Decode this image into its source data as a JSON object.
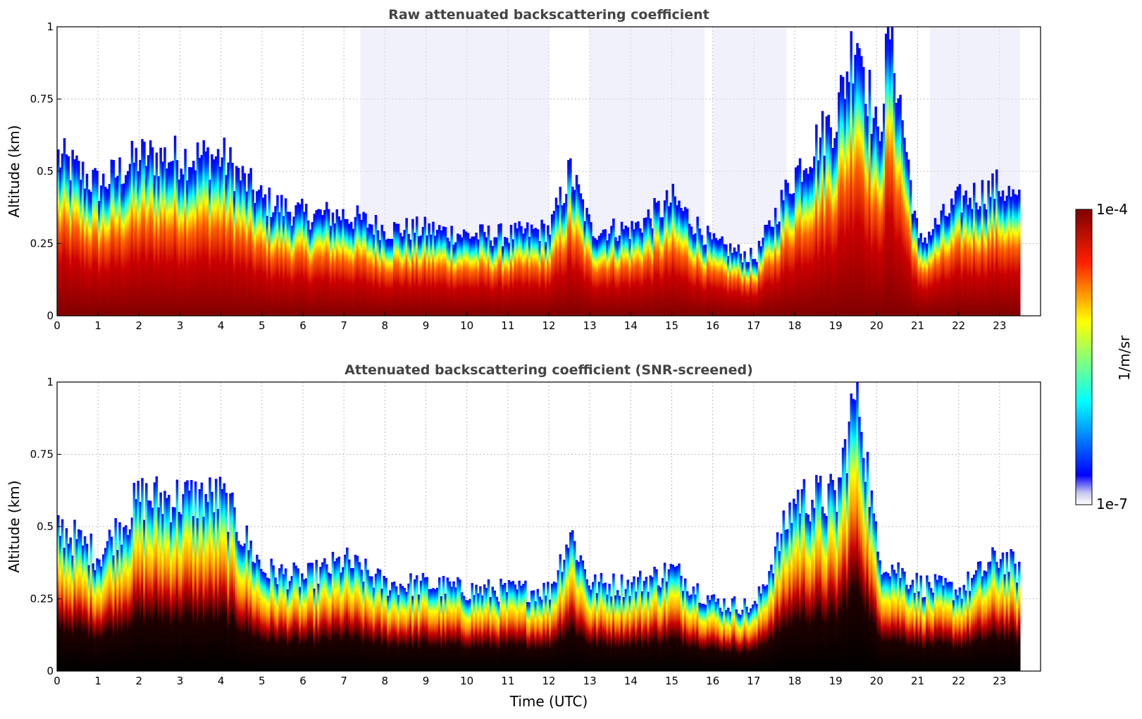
{
  "chart_data": [
    {
      "type": "heatmap",
      "title": "Raw attenuated backscattering coefficient",
      "xlabel": "",
      "ylabel": "Altitude (km)",
      "xlim": [
        0,
        24
      ],
      "ylim": [
        0,
        1
      ],
      "xticks": [
        "0",
        "1",
        "2",
        "3",
        "4",
        "5",
        "6",
        "7",
        "8",
        "9",
        "10",
        "11",
        "12",
        "13",
        "14",
        "15",
        "16",
        "17",
        "18",
        "19",
        "20",
        "21",
        "22",
        "23"
      ],
      "yticks": [
        "0",
        "0.25",
        "0.5",
        "0.75",
        "1"
      ],
      "grid": true,
      "data_end_hour": 23.5,
      "boundary_layer_top_km": [
        {
          "x": 0,
          "y": 0.55
        },
        {
          "x": 1,
          "y": 0.45
        },
        {
          "x": 2,
          "y": 0.55
        },
        {
          "x": 3,
          "y": 0.55
        },
        {
          "x": 4,
          "y": 0.55
        },
        {
          "x": 5,
          "y": 0.4
        },
        {
          "x": 6,
          "y": 0.35
        },
        {
          "x": 7,
          "y": 0.35
        },
        {
          "x": 8,
          "y": 0.3
        },
        {
          "x": 9,
          "y": 0.3
        },
        {
          "x": 10,
          "y": 0.28
        },
        {
          "x": 11,
          "y": 0.28
        },
        {
          "x": 12,
          "y": 0.3
        },
        {
          "x": 12.5,
          "y": 0.5
        },
        {
          "x": 13,
          "y": 0.3
        },
        {
          "x": 14,
          "y": 0.3
        },
        {
          "x": 15,
          "y": 0.4
        },
        {
          "x": 16,
          "y": 0.25
        },
        {
          "x": 17,
          "y": 0.2
        },
        {
          "x": 18,
          "y": 0.5
        },
        {
          "x": 19,
          "y": 0.7
        },
        {
          "x": 19.5,
          "y": 1.0
        },
        {
          "x": 20,
          "y": 0.6
        },
        {
          "x": 20.3,
          "y": 1.0
        },
        {
          "x": 21,
          "y": 0.25
        },
        {
          "x": 22,
          "y": 0.4
        },
        {
          "x": 23,
          "y": 0.45
        },
        {
          "x": 23.5,
          "y": 0.38
        }
      ]
    },
    {
      "type": "heatmap",
      "title": "Attenuated backscattering coefficient (SNR-screened)",
      "xlabel": "Time (UTC)",
      "ylabel": "Altitude (km)",
      "xlim": [
        0,
        24
      ],
      "ylim": [
        0,
        1
      ],
      "xticks": [
        "0",
        "1",
        "2",
        "3",
        "4",
        "5",
        "6",
        "7",
        "8",
        "9",
        "10",
        "11",
        "12",
        "13",
        "14",
        "15",
        "16",
        "17",
        "18",
        "19",
        "20",
        "21",
        "22",
        "23"
      ],
      "yticks": [
        "0",
        "0.25",
        "0.5",
        "0.75",
        "1"
      ],
      "grid": true,
      "data_end_hour": 23.5,
      "boundary_layer_top_km": [
        {
          "x": 0,
          "y": 0.5
        },
        {
          "x": 1,
          "y": 0.4
        },
        {
          "x": 2,
          "y": 0.6
        },
        {
          "x": 3,
          "y": 0.6
        },
        {
          "x": 4,
          "y": 0.6
        },
        {
          "x": 5,
          "y": 0.35
        },
        {
          "x": 6,
          "y": 0.32
        },
        {
          "x": 7,
          "y": 0.38
        },
        {
          "x": 8,
          "y": 0.3
        },
        {
          "x": 9,
          "y": 0.3
        },
        {
          "x": 10,
          "y": 0.28
        },
        {
          "x": 11,
          "y": 0.28
        },
        {
          "x": 12,
          "y": 0.28
        },
        {
          "x": 12.5,
          "y": 0.48
        },
        {
          "x": 13,
          "y": 0.3
        },
        {
          "x": 14,
          "y": 0.3
        },
        {
          "x": 15,
          "y": 0.35
        },
        {
          "x": 16,
          "y": 0.24
        },
        {
          "x": 17,
          "y": 0.22
        },
        {
          "x": 18,
          "y": 0.6
        },
        {
          "x": 19,
          "y": 0.6
        },
        {
          "x": 19.5,
          "y": 1.0
        },
        {
          "x": 20,
          "y": 0.4
        },
        {
          "x": 21,
          "y": 0.3
        },
        {
          "x": 22,
          "y": 0.28
        },
        {
          "x": 23,
          "y": 0.4
        },
        {
          "x": 23.5,
          "y": 0.34
        }
      ]
    }
  ],
  "colorbar": {
    "label": "1/m/sr",
    "max_label": "1e-4",
    "min_label": "1e-7",
    "scale": "log",
    "colormap": [
      "#e6e6fa",
      "#0000ff",
      "#00ffff",
      "#ffff00",
      "#ff0000",
      "#7f0000"
    ]
  }
}
